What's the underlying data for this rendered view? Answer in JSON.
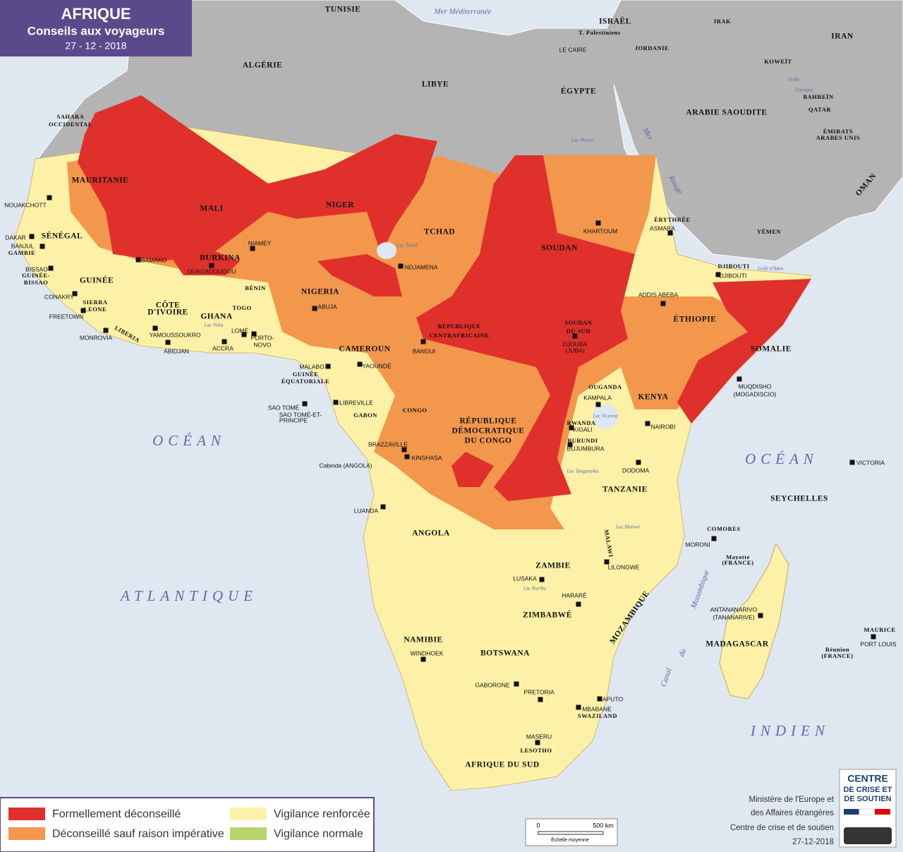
{
  "header": {
    "title": "AFRIQUE",
    "subtitle": "Conseils aux voyageurs",
    "date": "27 - 12 - 2018"
  },
  "countries": [
    "TUNISIE",
    "ALGÉRIE",
    "LIBYE",
    "ÉGYPTE",
    "ISRAËL",
    "T. Palestiniens",
    "JORDANIE",
    "IRAK",
    "IRAN",
    "KOWEÏT",
    "BAHREÏN",
    "QATAR",
    "ÉMIRATS",
    "ARABES UNIS",
    "ARABIE SAOUDITE",
    "OMAN",
    "YÉMEN",
    "SAHARA",
    "OCCIDENTAL",
    "MAURITANIE",
    "MALI",
    "NIGER",
    "TCHAD",
    "SOUDAN",
    "ÉRYTHRÉE",
    "DJIBOUTI",
    "SÉNÉGAL",
    "GAMBIE",
    "GUINÉE-",
    "BISSAO",
    "GUINÉE",
    "SIERRA",
    "LEONE",
    "LIBERIA",
    "CÔTE",
    "D'IVOIRE",
    "BURKINA",
    "GHANA",
    "TOGO",
    "BÉNIN",
    "NIGERIA",
    "CAMEROUN",
    "RÉPUBLIQUE",
    "CENTRAFRICAINE",
    "SOUDAN",
    "DU SUD",
    "ÉTHIOPIE",
    "SOMALIE",
    "GUINÉE",
    "ÉQUATORIALE",
    "GABON",
    "CONGO",
    "RÉPUBLIQUE",
    "DÉMOCRATIQUE",
    "DU CONGO",
    "OUGANDA",
    "KENYA",
    "RWANDA",
    "BURUNDI",
    "TANZANIE",
    "ANGOLA",
    "ZAMBIE",
    "MALAWI",
    "MOZAMBIQUE",
    "ZIMBABWÉ",
    "NAMIBIE",
    "BOTSWANA",
    "SWAZILAND",
    "LESOTHO",
    "AFRIQUE DU SUD",
    "MADAGASCAR",
    "SEYCHELLES",
    "COMORES",
    "Mayotte",
    "(FRANCE)",
    "MAURICE",
    "Réunion",
    "(FRANCE)"
  ],
  "capitals": [
    "NOUAKCHOTT",
    "DAKAR",
    "BANJUL",
    "BISSAO",
    "CONAKRY",
    "FREETOWN",
    "MONROVIA",
    "BAMAKO",
    "OUAGADOUGOU",
    "NIAMEY",
    "YAMOUSSOUKRO",
    "ABIDJAN",
    "ACCRA",
    "LOMÉ",
    "PORTO-",
    "NOVO",
    "ABUJA",
    "NDJAMENA",
    "KHARTOUM",
    "ASMARA",
    "DJIBOUTI",
    "ADDIS ABEBA",
    "BANGUI",
    "DJOUBA",
    "(JUBA)",
    "YAOUNDÉ",
    "MALABO",
    "SAO TOMÉ",
    "SAO TOMÉ-ET-",
    "PRINCIPE",
    "LIBREVILLE",
    "BRAZZAVILLE",
    "KINSHASA",
    "Cabinda (ANGOLA)",
    "KAMPALA",
    "KIGALI",
    "BUJUMBURA",
    "NAIROBI",
    "MUQDISHO",
    "(MOGADISCIO)",
    "DODOMA",
    "LUANDA",
    "LUSAKA",
    "LILONGWE",
    "HARARÉ",
    "MORONI",
    "VICTORIA",
    "ANTANANARIVO",
    "(TANANARIVE)",
    "PORT LOUIS",
    "WINDHOEK",
    "GABORONE",
    "PRETORIA",
    "MAPUTO",
    "MBABANE",
    "MASERU",
    "LE CAIRE"
  ],
  "waters": [
    "Mer Méditerranée",
    "OCÉAN",
    "ATLANTIQUE",
    "OCÉAN",
    "INDIEN",
    "Mer",
    "Rouge",
    "Golfe d'Aden",
    "Golfe",
    "Persique",
    "Canal",
    "du",
    "Mozambique",
    "Lac Tchad",
    "Lac Victoria",
    "Lac Tanganyika",
    "Lac Malawi",
    "Lac Kariba",
    "Lac Nasser",
    "Lac Volta"
  ],
  "legend": [
    {
      "label": "Formellement déconseillé",
      "color": "#e0302b"
    },
    {
      "label": "Déconseillé sauf raison impérative",
      "color": "#f2974c"
    },
    {
      "label": "Vigilance renforcée",
      "color": "#fcf1a6"
    },
    {
      "label": "Vigilance normale",
      "color": "#b9d46c"
    }
  ],
  "scale": {
    "start": "0",
    "end": "500 km",
    "caption": "Échelle moyenne"
  },
  "credits": [
    "Ministère de l'Europe et",
    "des Affaires étrangères",
    "Centre de crise et de soutien",
    "27-12-2018"
  ],
  "logo": [
    "CENTRE",
    "DE CRISE ET",
    "DE SOUTIEN"
  ]
}
